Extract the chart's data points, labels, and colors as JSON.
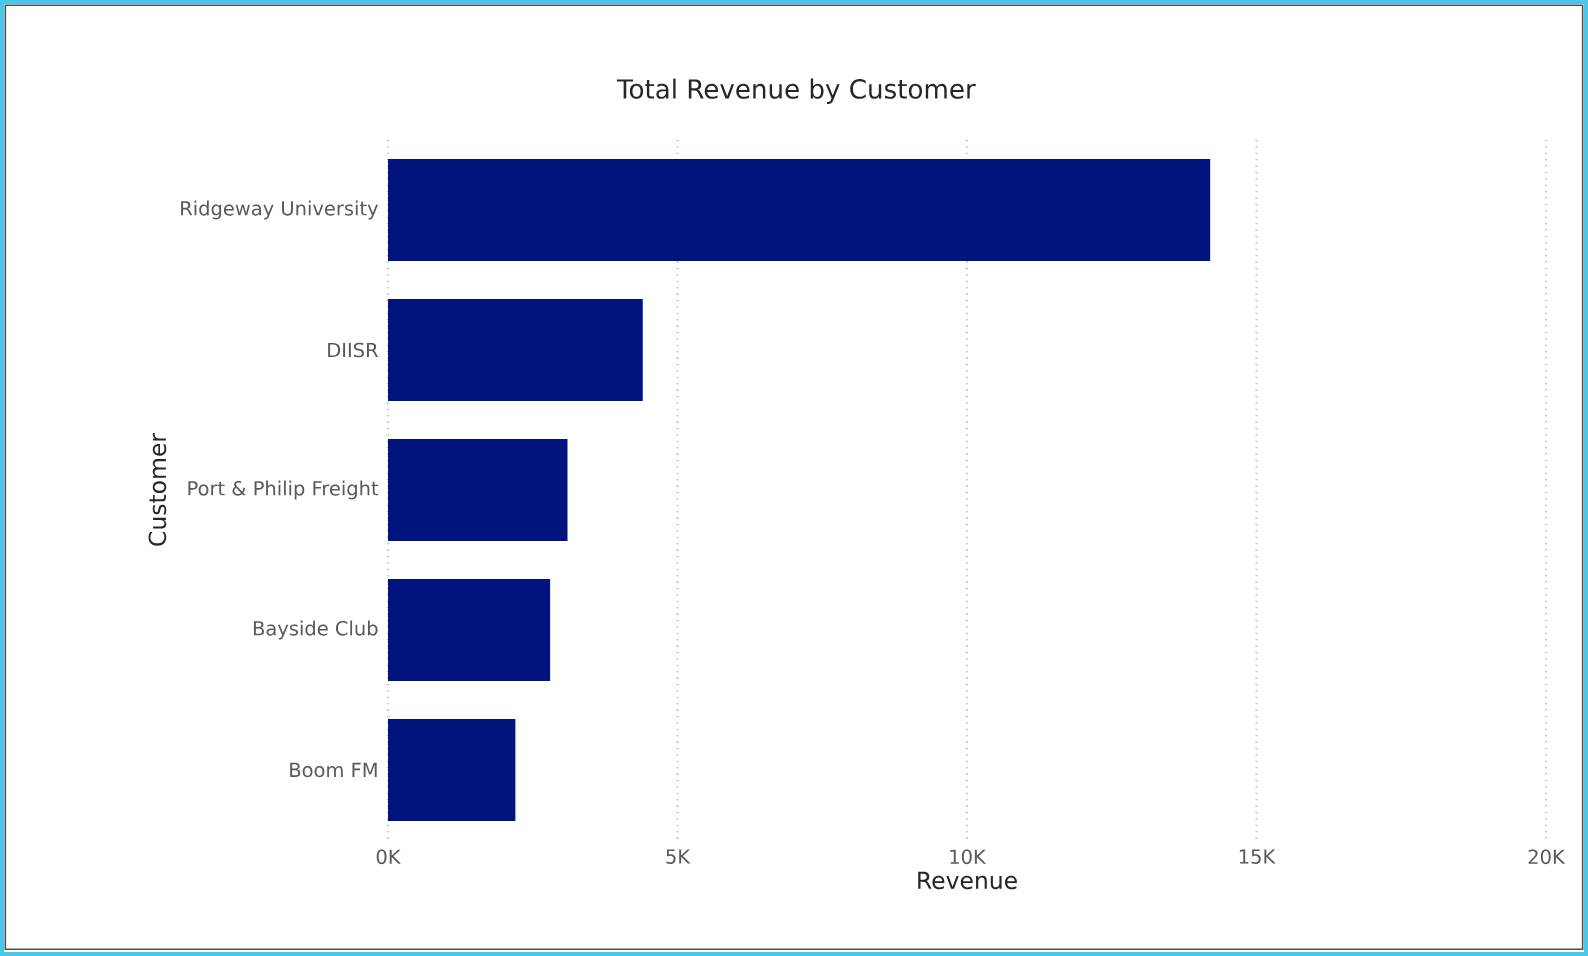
{
  "chart_data": {
    "type": "bar",
    "orientation": "horizontal",
    "title": "Total Revenue by Customer",
    "xlabel": "Revenue",
    "ylabel": "Customer",
    "categories": [
      "Ridgeway University",
      "DIISR",
      "Port & Philip Freight",
      "Bayside Club",
      "Boom FM"
    ],
    "values": [
      14200,
      4400,
      3100,
      2800,
      2200
    ],
    "color": "#00137f",
    "xlim": [
      0,
      20000
    ],
    "xticks": [
      {
        "value": 0,
        "label": "0K"
      },
      {
        "value": 5000,
        "label": "5K"
      },
      {
        "value": 10000,
        "label": "10K"
      },
      {
        "value": 15000,
        "label": "15K"
      },
      {
        "value": 20000,
        "label": "20K"
      }
    ],
    "grid": "x"
  }
}
